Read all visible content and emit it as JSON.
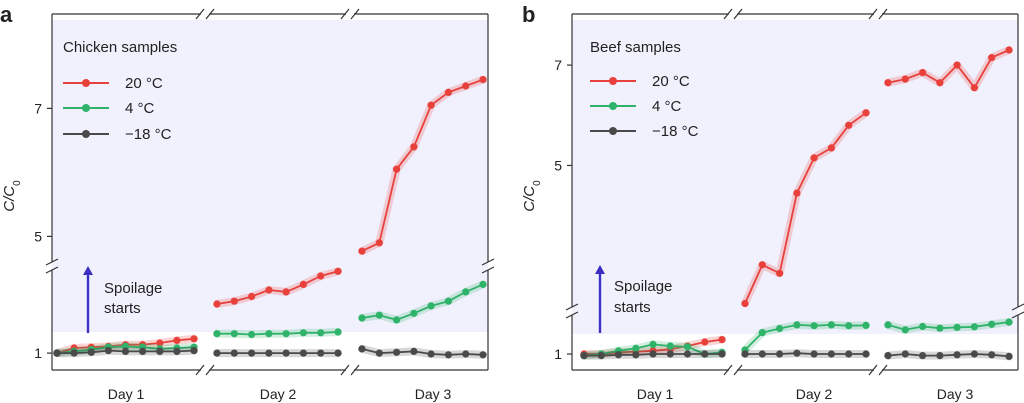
{
  "colors": {
    "hot": "#e8413c",
    "cold": "#2fb36a",
    "frozen": "#4a4a4a",
    "spoilage_bg": "#f1f1fd",
    "arrow": "#3b2fc4"
  },
  "annotation": {
    "line1": "Spoilage",
    "line2": "starts"
  },
  "chart_data": [
    {
      "panel_label": "a",
      "type": "line",
      "title": "Chicken samples",
      "ylabel_main": "C/C",
      "ylabel_sub": "0",
      "yticks": [
        1,
        5,
        7
      ],
      "ytick_labels": [
        "1",
        "5",
        "7"
      ],
      "groups": [
        "Day 1",
        "Day 2",
        "Day 3"
      ],
      "series": [
        {
          "name": "20 °C",
          "values": [
            [
              1.0,
              1.06,
              1.07,
              1.08,
              1.1,
              1.1,
              1.12,
              1.15,
              1.17
            ],
            [
              1.55,
              1.58,
              1.63,
              1.7,
              1.68,
              1.76,
              1.85,
              1.9
            ],
            [
              4.77,
              4.9,
              6.05,
              6.4,
              7.05,
              7.25,
              7.35,
              7.45
            ]
          ]
        },
        {
          "name": "4 °C",
          "values": [
            [
              1.0,
              1.02,
              1.04,
              1.07,
              1.08,
              1.07,
              1.05,
              1.06,
              1.07
            ],
            [
              1.23,
              1.23,
              1.22,
              1.23,
              1.23,
              1.24,
              1.24,
              1.25
            ],
            [
              1.4,
              1.43,
              1.38,
              1.45,
              1.53,
              1.58,
              1.68,
              1.76
            ]
          ]
        },
        {
          "name": "−18 °C",
          "values": [
            [
              1.0,
              1.0,
              1.01,
              1.03,
              1.02,
              1.02,
              1.02,
              1.02,
              1.03
            ],
            [
              1.0,
              1.0,
              1.0,
              1.0,
              1.0,
              1.0,
              1.0,
              1.0
            ],
            [
              1.05,
              1.0,
              1.01,
              1.02,
              0.99,
              0.98,
              0.99,
              0.98
            ]
          ]
        }
      ]
    },
    {
      "panel_label": "b",
      "type": "line",
      "title": "Beef samples",
      "ylabel_main": "C/C",
      "ylabel_sub": "0",
      "yticks": [
        1,
        5,
        7
      ],
      "ytick_labels": [
        "1",
        "5",
        "7"
      ],
      "groups": [
        "Day 1",
        "Day 2",
        "Day 3"
      ],
      "series": [
        {
          "name": "20 °C",
          "values": [
            [
              1.0,
              1.0,
              1.02,
              1.03,
              1.04,
              1.06,
              1.1,
              1.15,
              1.18
            ],
            [
              2.25,
              3.02,
              2.85,
              4.45,
              5.15,
              5.35,
              5.8,
              6.05
            ],
            [
              6.65,
              6.72,
              6.85,
              6.65,
              7.0,
              6.55,
              7.15,
              7.3
            ]
          ]
        },
        {
          "name": "4 °C",
          "values": [
            [
              0.98,
              1.0,
              1.04,
              1.07,
              1.12,
              1.1,
              1.09,
              1.0,
              1.02
            ],
            [
              1.05,
              1.3,
              1.45,
              1.58,
              1.55,
              1.58,
              1.55,
              1.56
            ],
            [
              1.58,
              1.4,
              1.52,
              1.46,
              1.49,
              1.51,
              1.6,
              1.68
            ]
          ]
        },
        {
          "name": "−18 °C",
          "values": [
            [
              0.98,
              0.98,
              0.99,
              0.99,
              1.0,
              1.0,
              1.0,
              1.0,
              1.0
            ],
            [
              1.0,
              1.0,
              1.0,
              1.01,
              1.0,
              1.0,
              1.0,
              1.0
            ],
            [
              0.98,
              1.0,
              0.98,
              0.98,
              0.99,
              1.0,
              0.99,
              0.97
            ]
          ]
        }
      ]
    }
  ]
}
